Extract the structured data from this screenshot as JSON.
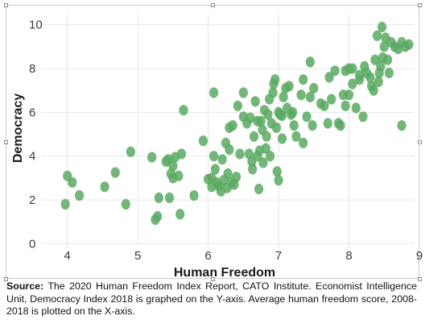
{
  "chart_data": {
    "type": "scatter",
    "title": "",
    "xlabel": "Human Freedom",
    "ylabel": "Democracy",
    "xlim": [
      3.5,
      9
    ],
    "ylim": [
      -0.5,
      10.8
    ],
    "xticks": [
      4,
      5,
      6,
      7,
      8,
      9
    ],
    "yticks": [
      0,
      2,
      4,
      6,
      8,
      10
    ],
    "grid": true,
    "legend": "none",
    "marker_color": "#5aa962",
    "points": [
      {
        "x": 3.97,
        "y": 1.8
      },
      {
        "x": 4.0,
        "y": 3.1
      },
      {
        "x": 4.07,
        "y": 2.8
      },
      {
        "x": 4.17,
        "y": 2.2
      },
      {
        "x": 4.53,
        "y": 2.6
      },
      {
        "x": 4.68,
        "y": 3.25
      },
      {
        "x": 4.83,
        "y": 1.8
      },
      {
        "x": 4.9,
        "y": 4.2
      },
      {
        "x": 5.2,
        "y": 3.95
      },
      {
        "x": 5.25,
        "y": 1.1
      },
      {
        "x": 5.28,
        "y": 1.25
      },
      {
        "x": 5.3,
        "y": 2.1
      },
      {
        "x": 5.4,
        "y": 3.75
      },
      {
        "x": 5.43,
        "y": 3.85
      },
      {
        "x": 5.45,
        "y": 2.1
      },
      {
        "x": 5.47,
        "y": 3.2
      },
      {
        "x": 5.5,
        "y": 3.55
      },
      {
        "x": 5.5,
        "y": 3.0
      },
      {
        "x": 5.53,
        "y": 3.95
      },
      {
        "x": 5.58,
        "y": 3.1
      },
      {
        "x": 5.6,
        "y": 1.35
      },
      {
        "x": 5.62,
        "y": 4.1
      },
      {
        "x": 5.65,
        "y": 6.1
      },
      {
        "x": 5.8,
        "y": 2.2
      },
      {
        "x": 5.93,
        "y": 4.7
      },
      {
        "x": 6.0,
        "y": 2.95
      },
      {
        "x": 6.05,
        "y": 3.0
      },
      {
        "x": 6.05,
        "y": 2.6
      },
      {
        "x": 6.08,
        "y": 6.9
      },
      {
        "x": 6.08,
        "y": 4.0
      },
      {
        "x": 6.1,
        "y": 3.4
      },
      {
        "x": 6.12,
        "y": 2.8
      },
      {
        "x": 6.15,
        "y": 2.65
      },
      {
        "x": 6.18,
        "y": 2.4
      },
      {
        "x": 6.2,
        "y": 3.85
      },
      {
        "x": 6.22,
        "y": 2.9
      },
      {
        "x": 6.25,
        "y": 4.6
      },
      {
        "x": 6.27,
        "y": 2.55
      },
      {
        "x": 6.28,
        "y": 3.2
      },
      {
        "x": 6.3,
        "y": 5.3
      },
      {
        "x": 6.3,
        "y": 4.3
      },
      {
        "x": 6.33,
        "y": 2.8
      },
      {
        "x": 6.35,
        "y": 5.4
      },
      {
        "x": 6.37,
        "y": 2.7
      },
      {
        "x": 6.4,
        "y": 3.05
      },
      {
        "x": 6.42,
        "y": 6.3
      },
      {
        "x": 6.45,
        "y": 4.1
      },
      {
        "x": 6.5,
        "y": 5.8
      },
      {
        "x": 6.5,
        "y": 6.9
      },
      {
        "x": 6.55,
        "y": 5.5
      },
      {
        "x": 6.58,
        "y": 4.1
      },
      {
        "x": 6.6,
        "y": 5.75
      },
      {
        "x": 6.62,
        "y": 3.75
      },
      {
        "x": 6.63,
        "y": 3.4
      },
      {
        "x": 6.65,
        "y": 4.9
      },
      {
        "x": 6.67,
        "y": 6.5
      },
      {
        "x": 6.7,
        "y": 5.6
      },
      {
        "x": 6.7,
        "y": 4.0
      },
      {
        "x": 6.72,
        "y": 2.5
      },
      {
        "x": 6.73,
        "y": 4.25
      },
      {
        "x": 6.75,
        "y": 5.6
      },
      {
        "x": 6.77,
        "y": 5.2
      },
      {
        "x": 6.78,
        "y": 3.7
      },
      {
        "x": 6.8,
        "y": 6.1
      },
      {
        "x": 6.82,
        "y": 4.35
      },
      {
        "x": 6.83,
        "y": 4.9
      },
      {
        "x": 6.85,
        "y": 5.9
      },
      {
        "x": 6.87,
        "y": 6.6
      },
      {
        "x": 6.88,
        "y": 4.0
      },
      {
        "x": 6.9,
        "y": 5.5
      },
      {
        "x": 6.92,
        "y": 6.9
      },
      {
        "x": 6.93,
        "y": 7.3
      },
      {
        "x": 6.95,
        "y": 7.5
      },
      {
        "x": 6.97,
        "y": 5.3
      },
      {
        "x": 6.98,
        "y": 3.3
      },
      {
        "x": 7.0,
        "y": 6.0
      },
      {
        "x": 7.0,
        "y": 2.9
      },
      {
        "x": 7.02,
        "y": 5.9
      },
      {
        "x": 7.05,
        "y": 4.8
      },
      {
        "x": 7.05,
        "y": 5.85
      },
      {
        "x": 7.07,
        "y": 6.7
      },
      {
        "x": 7.1,
        "y": 7.1
      },
      {
        "x": 7.12,
        "y": 6.2
      },
      {
        "x": 7.15,
        "y": 7.2
      },
      {
        "x": 7.18,
        "y": 5.9
      },
      {
        "x": 7.2,
        "y": 6.0
      },
      {
        "x": 7.22,
        "y": 5.4
      },
      {
        "x": 7.25,
        "y": 4.9
      },
      {
        "x": 7.32,
        "y": 6.8
      },
      {
        "x": 7.35,
        "y": 4.6
      },
      {
        "x": 7.35,
        "y": 7.5
      },
      {
        "x": 7.4,
        "y": 5.8
      },
      {
        "x": 7.45,
        "y": 8.3
      },
      {
        "x": 7.45,
        "y": 6.7
      },
      {
        "x": 7.48,
        "y": 5.4
      },
      {
        "x": 7.5,
        "y": 7.1
      },
      {
        "x": 7.6,
        "y": 6.4
      },
      {
        "x": 7.65,
        "y": 6.3
      },
      {
        "x": 7.7,
        "y": 5.5
      },
      {
        "x": 7.72,
        "y": 7.6
      },
      {
        "x": 7.75,
        "y": 6.6
      },
      {
        "x": 7.8,
        "y": 7.9
      },
      {
        "x": 7.85,
        "y": 5.5
      },
      {
        "x": 7.88,
        "y": 5.4
      },
      {
        "x": 7.92,
        "y": 6.8
      },
      {
        "x": 7.95,
        "y": 7.9
      },
      {
        "x": 7.95,
        "y": 6.3
      },
      {
        "x": 8.0,
        "y": 8.0
      },
      {
        "x": 8.0,
        "y": 6.8
      },
      {
        "x": 8.05,
        "y": 7.3
      },
      {
        "x": 8.05,
        "y": 8.0
      },
      {
        "x": 8.1,
        "y": 6.2
      },
      {
        "x": 8.15,
        "y": 7.7
      },
      {
        "x": 8.15,
        "y": 7.5
      },
      {
        "x": 8.2,
        "y": 5.8
      },
      {
        "x": 8.22,
        "y": 8.1
      },
      {
        "x": 8.25,
        "y": 7.8
      },
      {
        "x": 8.3,
        "y": 7.6
      },
      {
        "x": 8.32,
        "y": 7.2
      },
      {
        "x": 8.35,
        "y": 7.0
      },
      {
        "x": 8.37,
        "y": 8.4
      },
      {
        "x": 8.4,
        "y": 9.5
      },
      {
        "x": 8.42,
        "y": 7.4
      },
      {
        "x": 8.43,
        "y": 7.8
      },
      {
        "x": 8.45,
        "y": 8.1
      },
      {
        "x": 8.47,
        "y": 9.9
      },
      {
        "x": 8.48,
        "y": 8.5
      },
      {
        "x": 8.5,
        "y": 9.0
      },
      {
        "x": 8.52,
        "y": 9.4
      },
      {
        "x": 8.55,
        "y": 8.4
      },
      {
        "x": 8.57,
        "y": 7.8
      },
      {
        "x": 8.6,
        "y": 9.2
      },
      {
        "x": 8.65,
        "y": 9.0
      },
      {
        "x": 8.7,
        "y": 8.9
      },
      {
        "x": 8.75,
        "y": 9.2
      },
      {
        "x": 8.75,
        "y": 5.4
      },
      {
        "x": 8.8,
        "y": 9.0
      },
      {
        "x": 8.85,
        "y": 9.1
      }
    ]
  },
  "caption": {
    "label": "Source:",
    "text": " The 2020 Human Freedom Index Report, CATO Institute. Economist Intelligence Unit, Democracy Index 2018 is graphed on the Y-axis. Average human freedom score, 2008-2018 is plotted on the X-axis."
  }
}
